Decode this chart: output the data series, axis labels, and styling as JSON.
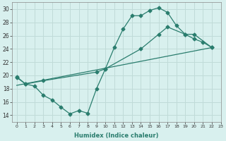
{
  "line1_x": [
    0,
    1,
    2,
    3,
    4,
    5,
    6,
    7,
    8,
    9,
    10,
    11,
    12,
    13,
    14,
    15,
    16,
    17,
    18,
    19,
    20,
    21,
    22
  ],
  "line1_y": [
    19.8,
    18.7,
    18.4,
    17.0,
    16.3,
    15.2,
    14.2,
    14.7,
    14.3,
    18.0,
    21.0,
    24.2,
    27.0,
    29.0,
    29.0,
    29.8,
    30.2,
    29.5,
    27.5,
    26.2,
    25.5,
    25.0,
    24.2
  ],
  "line2_x": [
    0,
    1,
    3,
    9,
    10,
    14,
    16,
    17,
    19,
    20,
    22
  ],
  "line2_y": [
    19.7,
    18.7,
    19.2,
    20.5,
    21.0,
    24.0,
    26.2,
    27.3,
    26.2,
    26.2,
    24.2
  ],
  "line3_x": [
    0,
    22
  ],
  "line3_y": [
    18.5,
    24.2
  ],
  "line_color": "#2a7d6e",
  "marker": "D",
  "marker_size": 2.5,
  "bg_color": "#d8f0ee",
  "grid_color": "#c0dbd8",
  "xlabel": "Humidex (Indice chaleur)",
  "xlim": [
    -0.5,
    23
  ],
  "ylim": [
    13,
    31
  ],
  "xtick_labels": [
    "0",
    "1",
    "2",
    "3",
    "4",
    "5",
    "6",
    "7",
    "8",
    "9",
    "10",
    "11",
    "12",
    "13",
    "14",
    "15",
    "16",
    "17",
    "18",
    "19",
    "20",
    "21",
    "22",
    "23"
  ],
  "ytick_values": [
    14,
    16,
    18,
    20,
    22,
    24,
    26,
    28,
    30
  ]
}
